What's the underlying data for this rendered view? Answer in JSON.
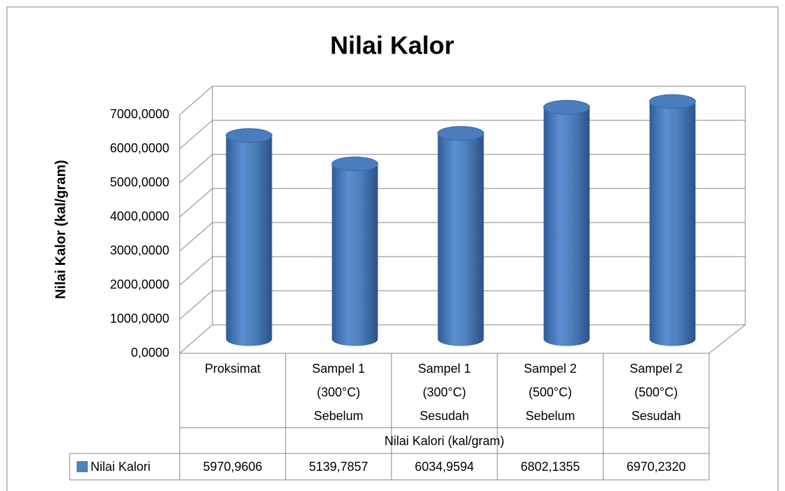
{
  "chart_data": {
    "type": "bar3d",
    "title": "Nilai Kalor",
    "y_label": "Nilai Kalor (kal/gram)",
    "x_label": "Nilai Kalori (kal/gram)",
    "categories": [
      [
        "Proksimat"
      ],
      [
        "Sampel 1",
        "(300°C)",
        "Sebelum"
      ],
      [
        "Sampel 1",
        "(300°C)",
        "Sesudah"
      ],
      [
        "Sampel 2",
        "(500°C)",
        "Sebelum"
      ],
      [
        "Sampel 2",
        "(500°C)",
        "Sesudah"
      ]
    ],
    "series": [
      {
        "name": "Nilai Kalori",
        "color": "#4f81bd",
        "values": [
          5970.9606,
          5139.7857,
          6034.9594,
          6802.1355,
          6970.232
        ],
        "value_labels": [
          "5970,9606",
          "5139,7857",
          "6034,9594",
          "6802,1355",
          "6970,2320"
        ]
      }
    ],
    "ylim": [
      0,
      7000
    ],
    "yticks": [
      {
        "value": 0,
        "label": "0,0000"
      },
      {
        "value": 1000,
        "label": "1000,0000"
      },
      {
        "value": 2000,
        "label": "2000,0000"
      },
      {
        "value": 3000,
        "label": "3000,0000"
      },
      {
        "value": 4000,
        "label": "4000,0000"
      },
      {
        "value": 5000,
        "label": "5000,0000"
      },
      {
        "value": 6000,
        "label": "6000,0000"
      },
      {
        "value": 7000,
        "label": "7000,0000"
      }
    ],
    "grid": true
  }
}
